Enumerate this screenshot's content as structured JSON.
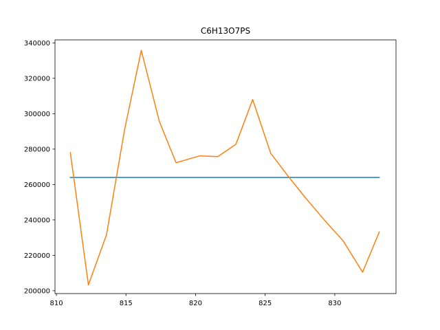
{
  "chart_data": {
    "type": "line",
    "title": "C6H13O7PS",
    "xlabel": "",
    "ylabel": "",
    "xlim": [
      809.9,
      834.4
    ],
    "ylim": [
      198400,
      341700
    ],
    "grid": false,
    "x_ticks": [
      810,
      815,
      820,
      825,
      830
    ],
    "y_ticks": [
      200000,
      220000,
      240000,
      260000,
      280000,
      300000,
      320000,
      340000
    ],
    "x_tick_labels": [
      "810",
      "815",
      "820",
      "825",
      "830"
    ],
    "y_tick_labels": [
      "200000",
      "220000",
      "240000",
      "260000",
      "280000",
      "300000",
      "320000",
      "340000"
    ],
    "series": [
      {
        "color": "#1f77b4",
        "x": [
          811.0,
          833.2
        ],
        "values": [
          264000,
          264000
        ]
      },
      {
        "color": "#ff7f0e",
        "x": [
          811.0,
          812.3,
          813.6,
          814.9,
          816.1,
          817.4,
          818.6,
          820.3,
          821.6,
          822.9,
          824.1,
          825.4,
          826.6,
          827.9,
          829.3,
          830.6,
          832.0,
          833.2
        ],
        "values": [
          278000,
          203300,
          231600,
          291000,
          335800,
          295600,
          272300,
          276200,
          275800,
          282800,
          308000,
          277600,
          265200,
          252400,
          239500,
          228200,
          210500,
          233200
        ]
      }
    ]
  }
}
